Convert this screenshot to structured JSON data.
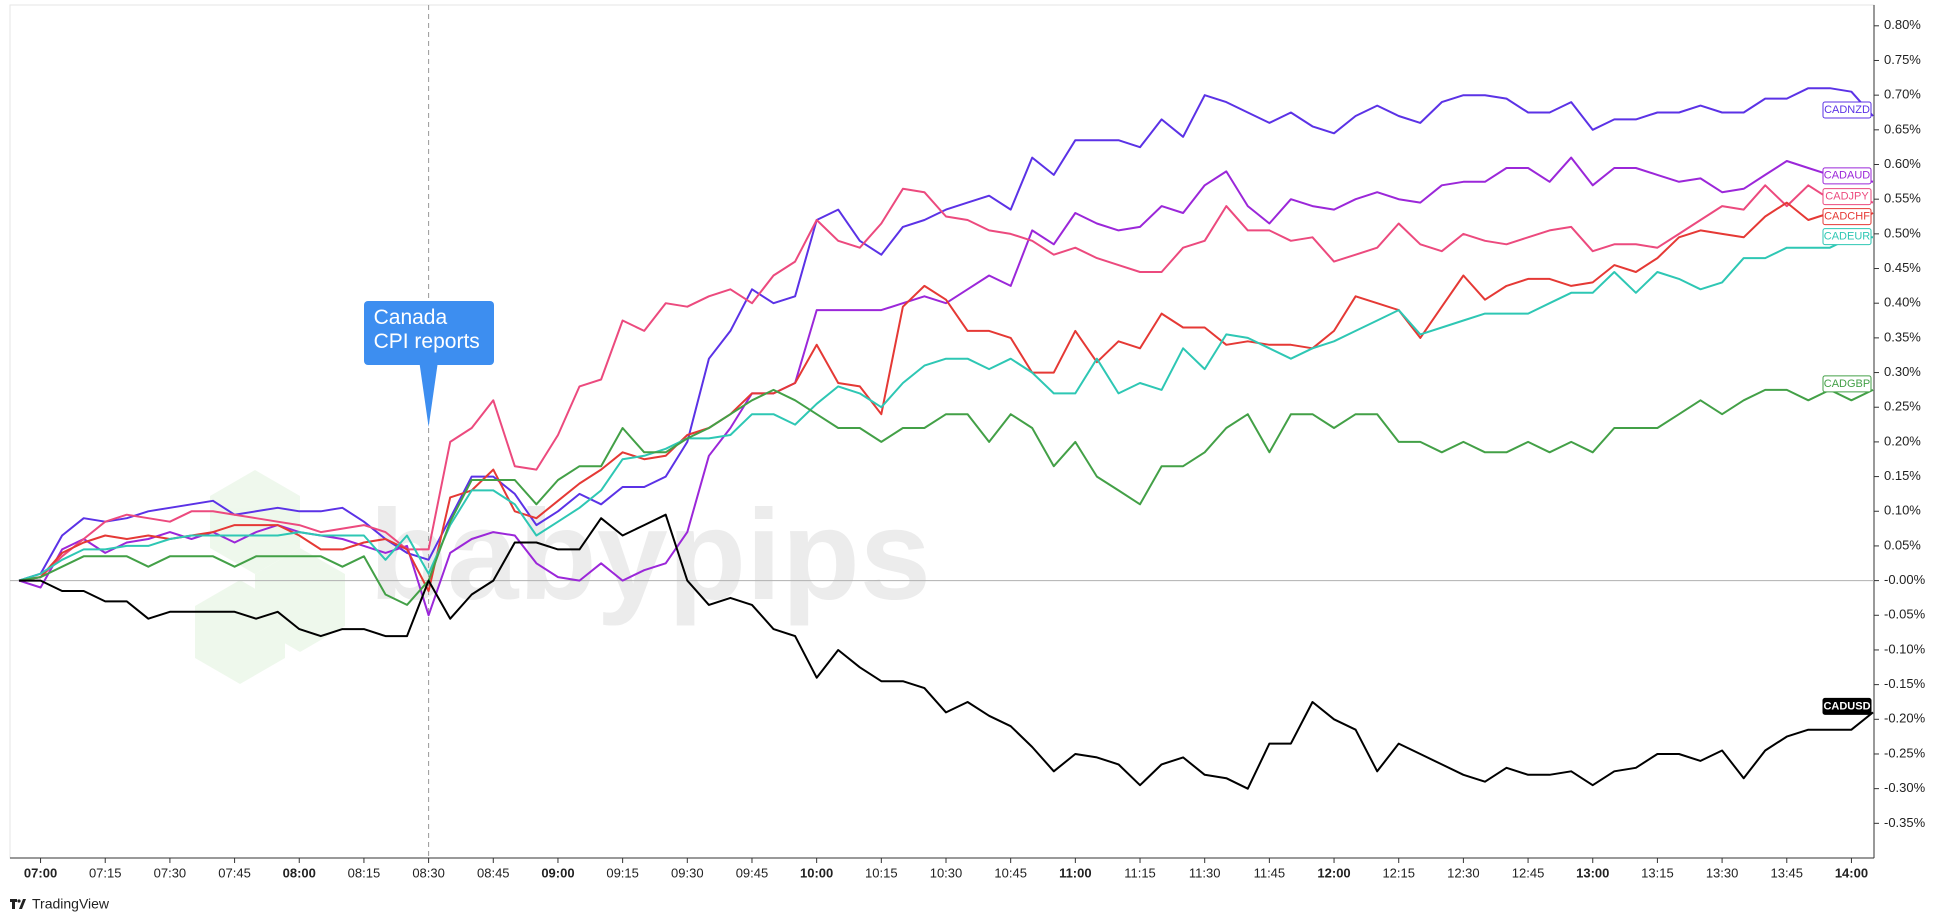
{
  "chart_data": {
    "type": "line",
    "watermark": "babypips",
    "source": "TradingView",
    "annotations": [
      {
        "text": "Canada CPI reports",
        "x": "08:30"
      }
    ],
    "x": [
      "06:55",
      "07:00",
      "07:05",
      "07:10",
      "07:15",
      "07:20",
      "07:25",
      "07:30",
      "07:35",
      "07:40",
      "07:45",
      "07:50",
      "07:55",
      "08:00",
      "08:05",
      "08:10",
      "08:15",
      "08:20",
      "08:25",
      "08:30",
      "08:35",
      "08:40",
      "08:45",
      "08:50",
      "08:55",
      "09:00",
      "09:05",
      "09:10",
      "09:15",
      "09:20",
      "09:25",
      "09:30",
      "09:35",
      "09:40",
      "09:45",
      "09:50",
      "09:55",
      "10:00",
      "10:05",
      "10:10",
      "10:15",
      "10:20",
      "10:25",
      "10:30",
      "10:35",
      "10:40",
      "10:45",
      "10:50",
      "10:55",
      "11:00",
      "11:05",
      "11:10",
      "11:15",
      "11:20",
      "11:25",
      "11:30",
      "11:35",
      "11:40",
      "11:45",
      "11:50",
      "11:55",
      "12:00",
      "12:05",
      "12:10",
      "12:15",
      "12:20",
      "12:25",
      "12:30",
      "12:35",
      "12:40",
      "12:45",
      "12:50",
      "12:55",
      "13:00",
      "13:05",
      "13:10",
      "13:15",
      "13:20",
      "13:25",
      "13:30",
      "13:35",
      "13:40",
      "13:45",
      "13:50",
      "13:55",
      "14:00",
      "14:05"
    ],
    "xticks": [
      "07:00",
      "07:15",
      "07:30",
      "07:45",
      "08:00",
      "08:15",
      "08:30",
      "08:45",
      "09:00",
      "09:15",
      "09:30",
      "09:45",
      "10:00",
      "10:15",
      "10:30",
      "10:45",
      "11:00",
      "11:15",
      "11:30",
      "11:45",
      "12:00",
      "12:15",
      "12:30",
      "12:45",
      "13:00",
      "13:15",
      "13:30",
      "13:45",
      "14:00"
    ],
    "ylim": [
      -0.4,
      0.83
    ],
    "yticks": [
      {
        "value": 0.8,
        "label": "0.80%"
      },
      {
        "value": 0.75,
        "label": "0.75%"
      },
      {
        "value": 0.7,
        "label": "0.70%"
      },
      {
        "value": 0.65,
        "label": "0.65%"
      },
      {
        "value": 0.6,
        "label": "0.60%"
      },
      {
        "value": 0.55,
        "label": "0.55%"
      },
      {
        "value": 0.5,
        "label": "0.50%"
      },
      {
        "value": 0.45,
        "label": "0.45%"
      },
      {
        "value": 0.4,
        "label": "0.40%"
      },
      {
        "value": 0.35,
        "label": "0.35%"
      },
      {
        "value": 0.3,
        "label": "0.30%"
      },
      {
        "value": 0.25,
        "label": "0.25%"
      },
      {
        "value": 0.2,
        "label": "0.20%"
      },
      {
        "value": 0.15,
        "label": "0.15%"
      },
      {
        "value": 0.1,
        "label": "0.10%"
      },
      {
        "value": 0.05,
        "label": "0.05%"
      },
      {
        "value": 0,
        "label": "-0.00%"
      },
      {
        "value": -0.05,
        "label": "-0.05%"
      },
      {
        "value": -0.1,
        "label": "-0.10%"
      },
      {
        "value": -0.15,
        "label": "-0.15%"
      },
      {
        "value": -0.2,
        "label": "-0.20%"
      },
      {
        "value": -0.25,
        "label": "-0.25%"
      },
      {
        "value": -0.3,
        "label": "-0.30%"
      },
      {
        "value": -0.35,
        "label": "-0.35%"
      }
    ],
    "series": [
      {
        "name": "CADNZD",
        "color": "#5b32e6",
        "values": [
          0.0,
          0.01,
          0.065,
          0.09,
          0.085,
          0.09,
          0.1,
          0.105,
          0.11,
          0.115,
          0.095,
          0.1,
          0.105,
          0.1,
          0.1,
          0.105,
          0.085,
          0.06,
          0.04,
          0.03,
          0.09,
          0.15,
          0.15,
          0.125,
          0.08,
          0.1,
          0.125,
          0.11,
          0.135,
          0.135,
          0.15,
          0.2,
          0.32,
          0.36,
          0.42,
          0.4,
          0.41,
          0.52,
          0.535,
          0.49,
          0.47,
          0.51,
          0.52,
          0.535,
          0.545,
          0.555,
          0.535,
          0.61,
          0.585,
          0.635,
          0.635,
          0.635,
          0.625,
          0.665,
          0.64,
          0.7,
          0.69,
          0.675,
          0.66,
          0.675,
          0.655,
          0.645,
          0.67,
          0.685,
          0.67,
          0.66,
          0.69,
          0.7,
          0.7,
          0.695,
          0.675,
          0.675,
          0.69,
          0.65,
          0.665,
          0.665,
          0.675,
          0.675,
          0.685,
          0.675,
          0.675,
          0.695,
          0.695,
          0.71,
          0.71,
          0.705,
          0.67
        ]
      },
      {
        "name": "CADAUD",
        "color": "#9b27d9",
        "values": [
          0.0,
          -0.01,
          0.045,
          0.06,
          0.04,
          0.055,
          0.06,
          0.07,
          0.06,
          0.07,
          0.055,
          0.07,
          0.08,
          0.07,
          0.065,
          0.06,
          0.05,
          0.04,
          0.05,
          -0.05,
          0.04,
          0.06,
          0.07,
          0.065,
          0.025,
          0.005,
          0.0,
          0.025,
          0.0,
          0.015,
          0.025,
          0.07,
          0.18,
          0.22,
          0.27,
          0.27,
          0.285,
          0.39,
          0.39,
          0.39,
          0.39,
          0.4,
          0.41,
          0.4,
          0.42,
          0.44,
          0.425,
          0.505,
          0.485,
          0.53,
          0.515,
          0.505,
          0.51,
          0.54,
          0.53,
          0.57,
          0.59,
          0.54,
          0.515,
          0.55,
          0.54,
          0.535,
          0.55,
          0.56,
          0.55,
          0.545,
          0.57,
          0.575,
          0.575,
          0.595,
          0.595,
          0.575,
          0.61,
          0.57,
          0.595,
          0.595,
          0.585,
          0.575,
          0.58,
          0.56,
          0.565,
          0.585,
          0.605,
          0.595,
          0.585,
          0.58,
          0.575
        ]
      },
      {
        "name": "CADJPY",
        "color": "#ec4a7e",
        "values": [
          0.0,
          0.005,
          0.035,
          0.06,
          0.085,
          0.095,
          0.09,
          0.085,
          0.1,
          0.1,
          0.095,
          0.09,
          0.085,
          0.08,
          0.07,
          0.075,
          0.08,
          0.07,
          0.045,
          0.045,
          0.2,
          0.22,
          0.26,
          0.165,
          0.16,
          0.21,
          0.28,
          0.29,
          0.375,
          0.36,
          0.4,
          0.395,
          0.41,
          0.42,
          0.4,
          0.44,
          0.46,
          0.52,
          0.49,
          0.48,
          0.515,
          0.565,
          0.56,
          0.525,
          0.52,
          0.505,
          0.5,
          0.49,
          0.47,
          0.48,
          0.465,
          0.455,
          0.445,
          0.445,
          0.48,
          0.49,
          0.54,
          0.505,
          0.505,
          0.49,
          0.495,
          0.46,
          0.47,
          0.48,
          0.515,
          0.485,
          0.475,
          0.5,
          0.49,
          0.485,
          0.495,
          0.505,
          0.51,
          0.475,
          0.485,
          0.485,
          0.48,
          0.5,
          0.52,
          0.54,
          0.535,
          0.57,
          0.54,
          0.57,
          0.55,
          0.555,
          0.545
        ]
      },
      {
        "name": "CADCHF",
        "color": "#e53935",
        "values": [
          0.0,
          0.005,
          0.04,
          0.055,
          0.065,
          0.06,
          0.065,
          0.06,
          0.065,
          0.07,
          0.08,
          0.08,
          0.08,
          0.065,
          0.045,
          0.045,
          0.055,
          0.06,
          0.045,
          -0.015,
          0.12,
          0.13,
          0.16,
          0.1,
          0.09,
          0.115,
          0.14,
          0.16,
          0.185,
          0.175,
          0.18,
          0.21,
          0.22,
          0.24,
          0.27,
          0.27,
          0.285,
          0.34,
          0.285,
          0.28,
          0.24,
          0.395,
          0.425,
          0.405,
          0.36,
          0.36,
          0.35,
          0.3,
          0.3,
          0.36,
          0.315,
          0.345,
          0.335,
          0.385,
          0.365,
          0.365,
          0.34,
          0.345,
          0.34,
          0.34,
          0.335,
          0.36,
          0.41,
          0.4,
          0.39,
          0.35,
          0.395,
          0.44,
          0.405,
          0.425,
          0.435,
          0.435,
          0.425,
          0.43,
          0.455,
          0.445,
          0.465,
          0.495,
          0.505,
          0.5,
          0.495,
          0.525,
          0.545,
          0.52,
          0.53,
          0.515,
          0.53
        ]
      },
      {
        "name": "CADEUR",
        "color": "#2ec7b4",
        "values": [
          0.0,
          0.01,
          0.03,
          0.045,
          0.045,
          0.05,
          0.05,
          0.06,
          0.065,
          0.065,
          0.065,
          0.065,
          0.065,
          0.07,
          0.065,
          0.065,
          0.065,
          0.03,
          0.065,
          0.01,
          0.08,
          0.13,
          0.13,
          0.11,
          0.065,
          0.085,
          0.105,
          0.13,
          0.175,
          0.18,
          0.19,
          0.205,
          0.205,
          0.21,
          0.24,
          0.24,
          0.225,
          0.255,
          0.28,
          0.27,
          0.25,
          0.285,
          0.31,
          0.32,
          0.32,
          0.305,
          0.32,
          0.3,
          0.27,
          0.27,
          0.32,
          0.27,
          0.285,
          0.275,
          0.335,
          0.305,
          0.355,
          0.35,
          0.335,
          0.32,
          0.335,
          0.345,
          0.36,
          0.375,
          0.39,
          0.355,
          0.365,
          0.375,
          0.385,
          0.385,
          0.385,
          0.4,
          0.415,
          0.415,
          0.445,
          0.415,
          0.445,
          0.435,
          0.42,
          0.43,
          0.465,
          0.465,
          0.48,
          0.48,
          0.48,
          0.495,
          0.495
        ]
      },
      {
        "name": "CADGBP",
        "color": "#43a047",
        "values": [
          0.0,
          0.005,
          0.02,
          0.035,
          0.035,
          0.035,
          0.02,
          0.035,
          0.035,
          0.035,
          0.02,
          0.035,
          0.035,
          0.035,
          0.035,
          0.02,
          0.035,
          -0.02,
          -0.035,
          0.0,
          0.085,
          0.145,
          0.145,
          0.145,
          0.11,
          0.145,
          0.165,
          0.165,
          0.22,
          0.185,
          0.185,
          0.205,
          0.22,
          0.24,
          0.26,
          0.275,
          0.26,
          0.24,
          0.22,
          0.22,
          0.2,
          0.22,
          0.22,
          0.24,
          0.24,
          0.2,
          0.24,
          0.22,
          0.165,
          0.2,
          0.15,
          0.13,
          0.11,
          0.165,
          0.165,
          0.185,
          0.22,
          0.24,
          0.185,
          0.24,
          0.24,
          0.22,
          0.24,
          0.24,
          0.2,
          0.2,
          0.185,
          0.2,
          0.185,
          0.185,
          0.2,
          0.185,
          0.2,
          0.185,
          0.22,
          0.22,
          0.22,
          0.24,
          0.26,
          0.24,
          0.26,
          0.275,
          0.275,
          0.26,
          0.275,
          0.26,
          0.275
        ]
      },
      {
        "name": "CADUSD",
        "color": "#000000",
        "values": [
          0.0,
          0.0,
          -0.015,
          -0.015,
          -0.03,
          -0.03,
          -0.055,
          -0.045,
          -0.045,
          -0.045,
          -0.045,
          -0.055,
          -0.045,
          -0.07,
          -0.08,
          -0.07,
          -0.07,
          -0.08,
          -0.08,
          0.0,
          -0.055,
          -0.02,
          0.0,
          0.055,
          0.055,
          0.045,
          0.045,
          0.09,
          0.065,
          0.08,
          0.095,
          0.0,
          -0.035,
          -0.025,
          -0.035,
          -0.07,
          -0.08,
          -0.14,
          -0.1,
          -0.125,
          -0.145,
          -0.145,
          -0.155,
          -0.19,
          -0.175,
          -0.195,
          -0.21,
          -0.24,
          -0.275,
          -0.25,
          -0.255,
          -0.265,
          -0.295,
          -0.265,
          -0.255,
          -0.28,
          -0.285,
          -0.3,
          -0.235,
          -0.235,
          -0.175,
          -0.2,
          -0.215,
          -0.275,
          -0.235,
          -0.25,
          -0.265,
          -0.28,
          -0.29,
          -0.27,
          -0.28,
          -0.28,
          -0.275,
          -0.295,
          -0.275,
          -0.27,
          -0.25,
          -0.25,
          -0.26,
          -0.245,
          -0.285,
          -0.245,
          -0.225,
          -0.215,
          -0.215,
          -0.215,
          -0.19
        ]
      }
    ]
  }
}
